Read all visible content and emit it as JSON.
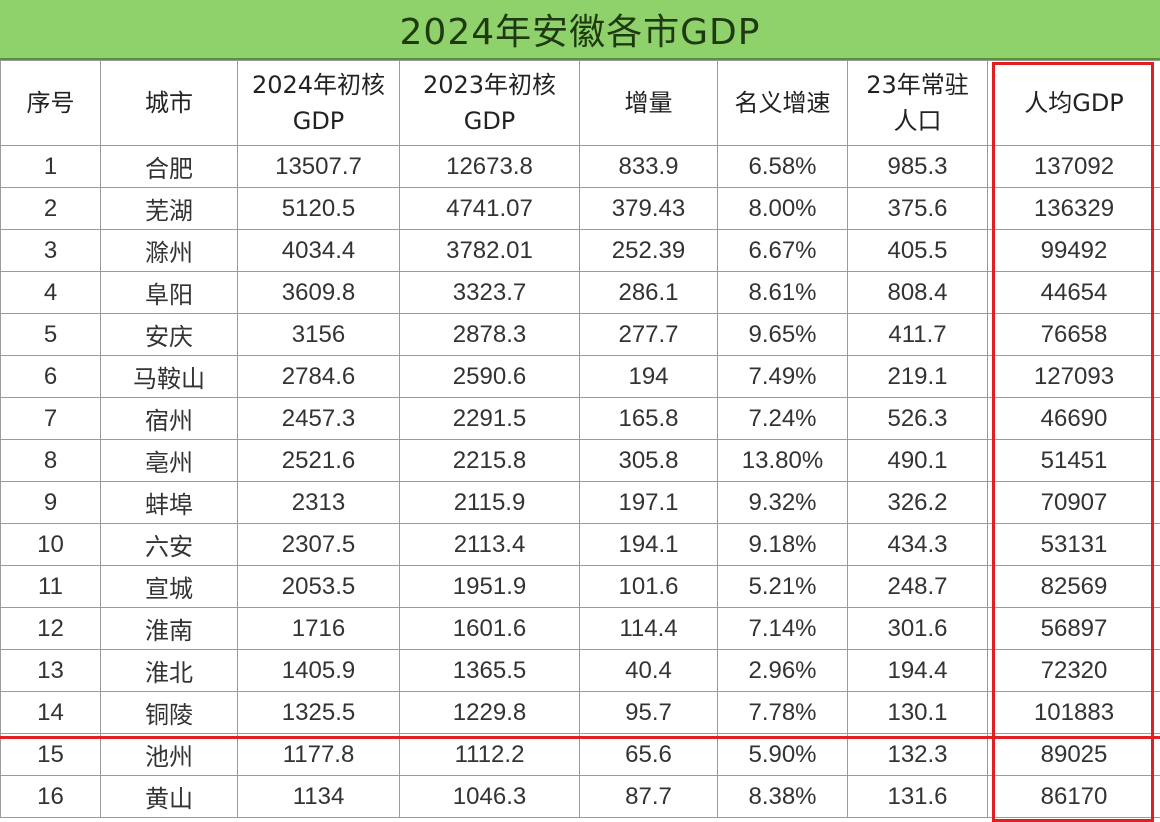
{
  "title": "2024年安徽各市GDP",
  "headers": [
    "序号",
    "城市",
    "2024年初核 GDP",
    "2023年初核 GDP",
    "增量",
    "名义增速",
    "23年常驻 人口",
    "人均GDP"
  ],
  "rows": [
    [
      "1",
      "合肥",
      "13507.7",
      "12673.8",
      "833.9",
      "6.58%",
      "985.3",
      "137092"
    ],
    [
      "2",
      "芜湖",
      "5120.5",
      "4741.07",
      "379.43",
      "8.00%",
      "375.6",
      "136329"
    ],
    [
      "3",
      "滁州",
      "4034.4",
      "3782.01",
      "252.39",
      "6.67%",
      "405.5",
      "99492"
    ],
    [
      "4",
      "阜阳",
      "3609.8",
      "3323.7",
      "286.1",
      "8.61%",
      "808.4",
      "44654"
    ],
    [
      "5",
      "安庆",
      "3156",
      "2878.3",
      "277.7",
      "9.65%",
      "411.7",
      "76658"
    ],
    [
      "6",
      "马鞍山",
      "2784.6",
      "2590.6",
      "194",
      "7.49%",
      "219.1",
      "127093"
    ],
    [
      "7",
      "宿州",
      "2457.3",
      "2291.5",
      "165.8",
      "7.24%",
      "526.3",
      "46690"
    ],
    [
      "8",
      "亳州",
      "2521.6",
      "2215.8",
      "305.8",
      "13.80%",
      "490.1",
      "51451"
    ],
    [
      "9",
      "蚌埠",
      "2313",
      "2115.9",
      "197.1",
      "9.32%",
      "326.2",
      "70907"
    ],
    [
      "10",
      "六安",
      "2307.5",
      "2113.4",
      "194.1",
      "9.18%",
      "434.3",
      "53131"
    ],
    [
      "11",
      "宣城",
      "2053.5",
      "1951.9",
      "101.6",
      "5.21%",
      "248.7",
      "82569"
    ],
    [
      "12",
      "淮南",
      "1716",
      "1601.6",
      "114.4",
      "7.14%",
      "301.6",
      "56897"
    ],
    [
      "13",
      "淮北",
      "1405.9",
      "1365.5",
      "40.4",
      "2.96%",
      "194.4",
      "72320"
    ],
    [
      "14",
      "铜陵",
      "1325.5",
      "1229.8",
      "95.7",
      "7.78%",
      "130.1",
      "101883"
    ],
    [
      "15",
      "池州",
      "1177.8",
      "1112.2",
      "65.6",
      "5.90%",
      "132.3",
      "89025"
    ],
    [
      "16",
      "黄山",
      "1134",
      "1046.3",
      "87.7",
      "8.38%",
      "131.6",
      "86170"
    ]
  ],
  "colors": {
    "title_bg": "#8fd16a",
    "highlight": "#e02020",
    "grid_line": "#9a9a9a"
  }
}
